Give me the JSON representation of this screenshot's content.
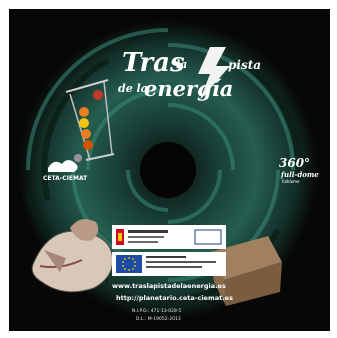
{
  "cover": {
    "title": {
      "word1": "Tras",
      "word2": "la",
      "word3": "pista",
      "word4": "de la",
      "word5": "energía"
    },
    "org": "CETA-CIEMAT",
    "badge": {
      "line1": "360°",
      "line2": "full-dome",
      "line3": "fulldome"
    },
    "links": {
      "url1": "www.traslapistadelaenergia.es",
      "url2": "http://planetario.ceta-ciemat.es"
    },
    "isbn": {
      "line1": "N.I.P.O.: 471-13-028-5",
      "line2": "D.L.: M-19052-2013"
    },
    "colors": {
      "background": "#070707",
      "swirl": "#2f7a66",
      "title": "#ffffff",
      "lightning": "#f2f2f2"
    }
  }
}
